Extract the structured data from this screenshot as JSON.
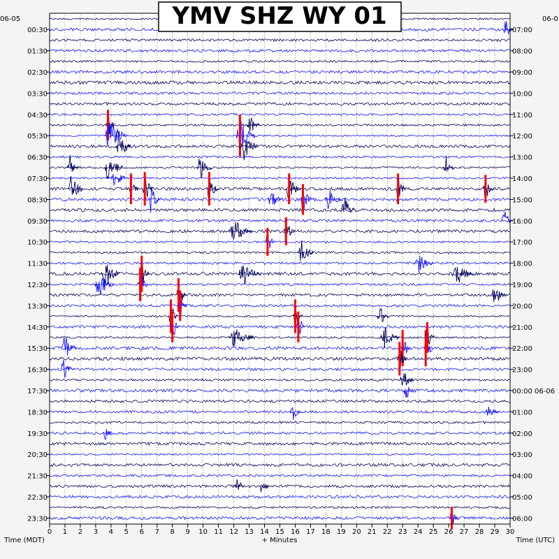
{
  "chart_data": {
    "type": "helicorder",
    "title": "YMV SHZ WY 01",
    "left_axis_label": "Time (MDT)",
    "right_axis_label": "Time (UTC)",
    "bottom_axis_label": "+ Minutes",
    "left_date": "06-05",
    "right_date": "06-0",
    "right_date_change": "06-06",
    "minute_ticks": [
      "0",
      "1",
      "2",
      "3",
      "4",
      "5",
      "6",
      "7",
      "8",
      "9",
      "10",
      "11",
      "12",
      "13",
      "14",
      "15",
      "16",
      "17",
      "18",
      "19",
      "20",
      "21",
      "22",
      "23",
      "24",
      "25",
      "26",
      "27",
      "28",
      "29",
      "30"
    ],
    "xlim": [
      0,
      30
    ],
    "left_times": [
      "00:30",
      "01:30",
      "02:30",
      "03:30",
      "04:30",
      "05:30",
      "06:30",
      "07:30",
      "08:30",
      "09:30",
      "10:30",
      "11:30",
      "12:30",
      "13:30",
      "14:30",
      "15:30",
      "16:30",
      "17:30",
      "18:30",
      "19:30",
      "20:30",
      "21:30",
      "22:30",
      "23:30"
    ],
    "right_times": [
      "07:00",
      "08:00",
      "09:00",
      "10:00",
      "11:00",
      "12:00",
      "13:00",
      "14:00",
      "15:00",
      "16:00",
      "17:00",
      "18:00",
      "19:00",
      "20:00",
      "21:00",
      "22:00",
      "23:00",
      "00:00 06-06",
      "01:00",
      "02:00",
      "03:00",
      "04:00",
      "05:00",
      "06:00"
    ],
    "lines_per_hour": 2,
    "trace_colors": [
      "#00005a",
      "#1414ff"
    ],
    "clip_color": "#ff0000",
    "events": [
      {
        "line": 1,
        "minute": 29.7,
        "width": 0.5,
        "amp": 18
      },
      {
        "line": 10,
        "minute": 3.8,
        "width": 0.5,
        "amp": 22,
        "clip": true
      },
      {
        "line": 11,
        "minute": 3.9,
        "width": 1.2,
        "amp": 28
      },
      {
        "line": 12,
        "minute": 4.5,
        "width": 0.8,
        "amp": 26
      },
      {
        "line": 11,
        "minute": 12.4,
        "width": 1.0,
        "amp": 30,
        "clip": true
      },
      {
        "line": 12,
        "minute": 12.6,
        "width": 1.0,
        "amp": 26
      },
      {
        "line": 10,
        "minute": 13.0,
        "width": 0.7,
        "amp": 18
      },
      {
        "line": 14,
        "minute": 1.3,
        "width": 0.6,
        "amp": 22
      },
      {
        "line": 16,
        "minute": 1.4,
        "width": 0.8,
        "amp": 24
      },
      {
        "line": 14,
        "minute": 3.8,
        "width": 1.0,
        "amp": 24
      },
      {
        "line": 15,
        "minute": 4.2,
        "width": 0.8,
        "amp": 20
      },
      {
        "line": 16,
        "minute": 5.3,
        "width": 0.5,
        "amp": 22,
        "clip": true
      },
      {
        "line": 16,
        "minute": 6.2,
        "width": 0.6,
        "amp": 24,
        "clip": true
      },
      {
        "line": 17,
        "minute": 6.6,
        "width": 0.6,
        "amp": 22
      },
      {
        "line": 14,
        "minute": 9.8,
        "width": 0.8,
        "amp": 22
      },
      {
        "line": 16,
        "minute": 10.4,
        "width": 0.6,
        "amp": 24,
        "clip": true
      },
      {
        "line": 17,
        "minute": 14.4,
        "width": 0.7,
        "amp": 20
      },
      {
        "line": 16,
        "minute": 15.6,
        "width": 0.8,
        "amp": 22,
        "clip": true
      },
      {
        "line": 17,
        "minute": 16.5,
        "width": 0.6,
        "amp": 22,
        "clip": true
      },
      {
        "line": 17,
        "minute": 18.2,
        "width": 0.8,
        "amp": 20
      },
      {
        "line": 18,
        "minute": 19.2,
        "width": 0.7,
        "amp": 22
      },
      {
        "line": 16,
        "minute": 22.7,
        "width": 0.5,
        "amp": 22,
        "clip": true
      },
      {
        "line": 14,
        "minute": 25.8,
        "width": 0.6,
        "amp": 20
      },
      {
        "line": 16,
        "minute": 28.4,
        "width": 0.6,
        "amp": 20,
        "clip": true
      },
      {
        "line": 19,
        "minute": 29.6,
        "width": 0.6,
        "amp": 20
      },
      {
        "line": 20,
        "minute": 12.0,
        "width": 1.2,
        "amp": 22
      },
      {
        "line": 21,
        "minute": 14.2,
        "width": 0.5,
        "amp": 20,
        "clip": true
      },
      {
        "line": 20,
        "minute": 15.4,
        "width": 0.6,
        "amp": 20,
        "clip": true
      },
      {
        "line": 22,
        "minute": 16.4,
        "width": 0.8,
        "amp": 22
      },
      {
        "line": 24,
        "minute": 3.6,
        "width": 1.0,
        "amp": 24
      },
      {
        "line": 25,
        "minute": 3.2,
        "width": 1.0,
        "amp": 22
      },
      {
        "line": 24,
        "minute": 6.0,
        "width": 0.5,
        "amp": 26,
        "clip": true
      },
      {
        "line": 25,
        "minute": 5.9,
        "width": 0.5,
        "amp": 24,
        "clip": true
      },
      {
        "line": 26,
        "minute": 8.4,
        "width": 0.5,
        "amp": 24,
        "clip": true
      },
      {
        "line": 27,
        "minute": 8.5,
        "width": 0.5,
        "amp": 22,
        "clip": true
      },
      {
        "line": 28,
        "minute": 7.9,
        "width": 0.5,
        "amp": 24,
        "clip": true
      },
      {
        "line": 29,
        "minute": 8.0,
        "width": 0.5,
        "amp": 22,
        "clip": true
      },
      {
        "line": 24,
        "minute": 12.6,
        "width": 1.2,
        "amp": 20
      },
      {
        "line": 23,
        "minute": 24.0,
        "width": 1.0,
        "amp": 18
      },
      {
        "line": 24,
        "minute": 26.5,
        "width": 1.2,
        "amp": 20
      },
      {
        "line": 26,
        "minute": 29.0,
        "width": 0.8,
        "amp": 18
      },
      {
        "line": 28,
        "minute": 16.0,
        "width": 0.5,
        "amp": 24,
        "clip": true
      },
      {
        "line": 29,
        "minute": 16.2,
        "width": 0.5,
        "amp": 22,
        "clip": true
      },
      {
        "line": 28,
        "minute": 21.5,
        "width": 0.6,
        "amp": 18
      },
      {
        "line": 30,
        "minute": 12.0,
        "width": 1.4,
        "amp": 18
      },
      {
        "line": 31,
        "minute": 1.0,
        "width": 0.8,
        "amp": 22
      },
      {
        "line": 31,
        "minute": 23.0,
        "width": 0.5,
        "amp": 26,
        "clip": true
      },
      {
        "line": 32,
        "minute": 22.8,
        "width": 0.5,
        "amp": 24,
        "clip": true
      },
      {
        "line": 31,
        "minute": 24.5,
        "width": 0.5,
        "amp": 26,
        "clip": true
      },
      {
        "line": 30,
        "minute": 24.6,
        "width": 0.5,
        "amp": 22,
        "clip": true
      },
      {
        "line": 30,
        "minute": 21.8,
        "width": 1.0,
        "amp": 18
      },
      {
        "line": 33,
        "minute": 0.9,
        "width": 0.7,
        "amp": 18
      },
      {
        "line": 34,
        "minute": 23.0,
        "width": 0.7,
        "amp": 18
      },
      {
        "line": 35,
        "minute": 23.2,
        "width": 0.5,
        "amp": 16
      },
      {
        "line": 37,
        "minute": 15.8,
        "width": 0.6,
        "amp": 16
      },
      {
        "line": 37,
        "minute": 28.6,
        "width": 0.7,
        "amp": 12
      },
      {
        "line": 39,
        "minute": 3.6,
        "width": 0.5,
        "amp": 12
      },
      {
        "line": 44,
        "minute": 12.2,
        "width": 0.5,
        "amp": 18
      },
      {
        "line": 44,
        "minute": 13.8,
        "width": 0.5,
        "amp": 18
      },
      {
        "line": 47,
        "minute": 26.2,
        "width": 0.5,
        "amp": 16,
        "clip": true
      }
    ]
  }
}
